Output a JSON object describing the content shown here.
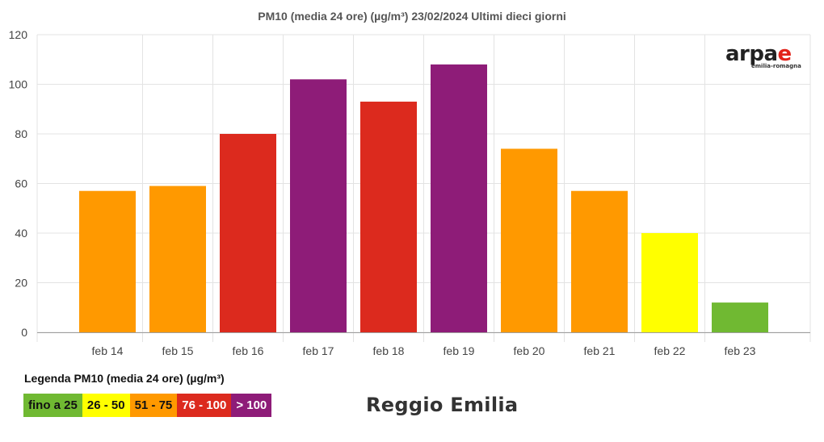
{
  "chart_data": {
    "type": "bar",
    "title": "PM10 (media 24 ore) (µg/m³) 23/02/2024 Ultimi dieci giorni",
    "categories": [
      "feb 14",
      "feb 15",
      "feb 16",
      "feb 17",
      "feb 18",
      "feb 19",
      "feb 20",
      "feb 21",
      "feb 22",
      "feb 23"
    ],
    "values": [
      57,
      59,
      80,
      102,
      93,
      108,
      74,
      57,
      40,
      12
    ],
    "bar_colors": [
      "#ff9900",
      "#ff9900",
      "#dc2a1e",
      "#8e1c78",
      "#dc2a1e",
      "#8e1c78",
      "#ff9900",
      "#ff9900",
      "#ffff00",
      "#70b932"
    ],
    "ylim": [
      0,
      120
    ],
    "yticks": [
      0,
      20,
      40,
      60,
      80,
      100,
      120
    ],
    "xlabel": "",
    "ylabel": "",
    "grid": true
  },
  "logo": {
    "main_prefix": "arpa",
    "main_suffix": "e",
    "sub": "emilia-romagna"
  },
  "legend": {
    "title": "Legenda PM10 (media 24 ore) (µg/m³)",
    "items": [
      {
        "label": "fino a 25",
        "color": "#70b932",
        "text_color": "#111111"
      },
      {
        "label": "26 - 50",
        "color": "#ffff00",
        "text_color": "#111111"
      },
      {
        "label": "51 - 75",
        "color": "#ff9900",
        "text_color": "#111111"
      },
      {
        "label": "76 - 100",
        "color": "#dc2a1e",
        "text_color": "#ffffff"
      },
      {
        "label": "> 100",
        "color": "#8e1c78",
        "text_color": "#ffffff"
      }
    ]
  },
  "station": "Reggio Emilia"
}
